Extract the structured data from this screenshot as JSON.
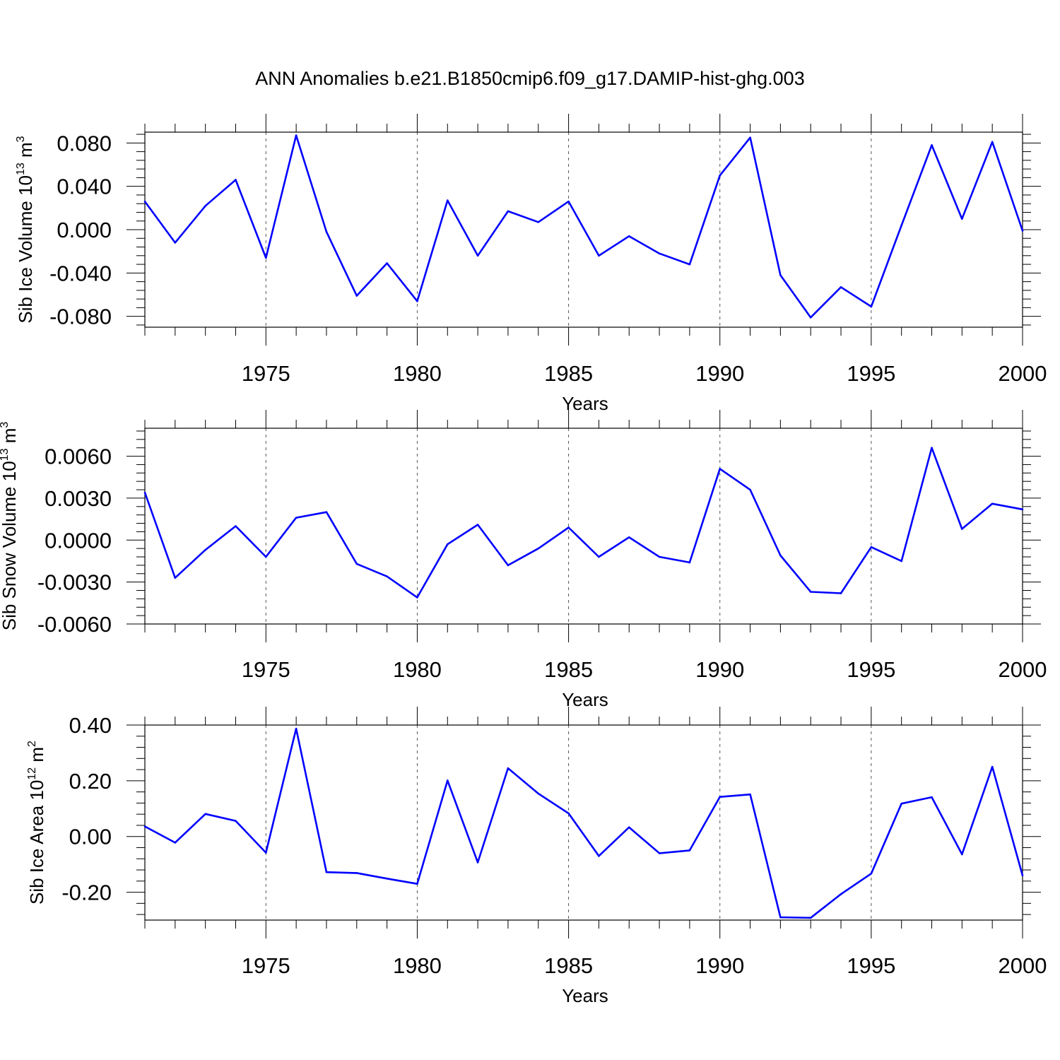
{
  "title": "ANN Anomalies b.e21.B1850cmip6.f09_g17.DAMIP-hist-ghg.003",
  "colors": {
    "line": "#0000ff",
    "axis": "#000000",
    "grid": "#555555"
  },
  "chart_data": [
    {
      "type": "line",
      "title": "ANN Anomalies b.e21.B1850cmip6.f09_g17.DAMIP-hist-ghg.003",
      "xlabel": "Years",
      "ylabel": {
        "text": "Sib Ice Volume 10",
        "exp1": "13",
        "unit": " m",
        "exp2": "3"
      },
      "xlim": [
        1971,
        2000
      ],
      "ylim": [
        -0.09,
        0.09
      ],
      "x_ticks": [
        1975,
        1980,
        1985,
        1990,
        1995,
        2000
      ],
      "x_tick_labels": [
        "1975",
        "1980",
        "1985",
        "1990",
        "1995",
        "2000"
      ],
      "y_ticks": [
        0.08,
        0.04,
        0.0,
        -0.04,
        -0.08
      ],
      "y_tick_labels": [
        "0.080",
        "0.040",
        "0.000",
        "-0.040",
        "-0.080"
      ],
      "x": [
        1971,
        1972,
        1973,
        1974,
        1975,
        1976,
        1977,
        1978,
        1979,
        1980,
        1981,
        1982,
        1983,
        1984,
        1985,
        1986,
        1987,
        1988,
        1989,
        1990,
        1991,
        1992,
        1993,
        1994,
        1995,
        1996,
        1997,
        1998,
        1999,
        2000
      ],
      "values": [
        0.026,
        -0.012,
        0.022,
        0.046,
        -0.026,
        0.087,
        -0.002,
        -0.061,
        -0.031,
        -0.066,
        0.027,
        -0.024,
        0.017,
        0.007,
        0.026,
        -0.024,
        -0.006,
        -0.022,
        -0.032,
        0.05,
        0.085,
        -0.042,
        -0.081,
        -0.053,
        -0.071,
        0.004,
        0.078,
        0.01,
        0.081,
        -0.001
      ]
    },
    {
      "type": "line",
      "xlabel": "Years",
      "ylabel": {
        "text": "Sib Snow Volume 10",
        "exp1": "13",
        "unit": " m",
        "exp2": "3"
      },
      "xlim": [
        1971,
        2000
      ],
      "ylim": [
        -0.006,
        0.008
      ],
      "x_ticks": [
        1975,
        1980,
        1985,
        1990,
        1995,
        2000
      ],
      "x_tick_labels": [
        "1975",
        "1980",
        "1985",
        "1990",
        "1995",
        "2000"
      ],
      "y_ticks": [
        0.006,
        0.003,
        0.0,
        -0.003,
        -0.006
      ],
      "y_tick_labels": [
        "0.0060",
        "0.0030",
        "0.0000",
        "-0.0030",
        "-0.0060"
      ],
      "x": [
        1971,
        1972,
        1973,
        1974,
        1975,
        1976,
        1977,
        1978,
        1979,
        1980,
        1981,
        1982,
        1983,
        1984,
        1985,
        1986,
        1987,
        1988,
        1989,
        1990,
        1991,
        1992,
        1993,
        1994,
        1995,
        1996,
        1997,
        1998,
        1999,
        2000
      ],
      "values": [
        0.0034,
        -0.0027,
        -0.0007,
        0.001,
        -0.0012,
        0.0016,
        0.002,
        -0.0017,
        -0.0026,
        -0.0041,
        -0.0003,
        0.0011,
        -0.0018,
        -0.0006,
        0.0009,
        -0.0012,
        0.0002,
        -0.0012,
        -0.0016,
        0.0051,
        0.0036,
        -0.0011,
        -0.0037,
        -0.0038,
        -0.0005,
        -0.0015,
        0.0066,
        0.0008,
        0.0026,
        0.0022
      ]
    },
    {
      "type": "line",
      "xlabel": "Years",
      "ylabel": {
        "text": "Sib Ice Area 10",
        "exp1": "12",
        "unit": " m",
        "exp2": "2"
      },
      "xlim": [
        1971,
        2000
      ],
      "ylim": [
        -0.3,
        0.4
      ],
      "x_ticks": [
        1975,
        1980,
        1985,
        1990,
        1995,
        2000
      ],
      "x_tick_labels": [
        "1975",
        "1980",
        "1985",
        "1990",
        "1995",
        "2000"
      ],
      "y_ticks": [
        0.4,
        0.2,
        0.0,
        -0.2
      ],
      "y_tick_labels": [
        "0.40",
        "0.20",
        "0.00",
        "-0.20"
      ],
      "x": [
        1971,
        1972,
        1973,
        1974,
        1975,
        1976,
        1977,
        1978,
        1979,
        1980,
        1981,
        1982,
        1983,
        1984,
        1985,
        1986,
        1987,
        1988,
        1989,
        1990,
        1991,
        1992,
        1993,
        1994,
        1995,
        1996,
        1997,
        1998,
        1999,
        2000
      ],
      "values": [
        0.036,
        -0.022,
        0.081,
        0.056,
        -0.058,
        0.387,
        -0.128,
        -0.131,
        -0.151,
        -0.17,
        0.201,
        -0.093,
        0.245,
        0.154,
        0.083,
        -0.07,
        0.033,
        -0.06,
        -0.05,
        0.142,
        0.151,
        -0.29,
        -0.292,
        -0.207,
        -0.133,
        0.118,
        0.141,
        -0.064,
        0.25,
        -0.14
      ]
    }
  ]
}
